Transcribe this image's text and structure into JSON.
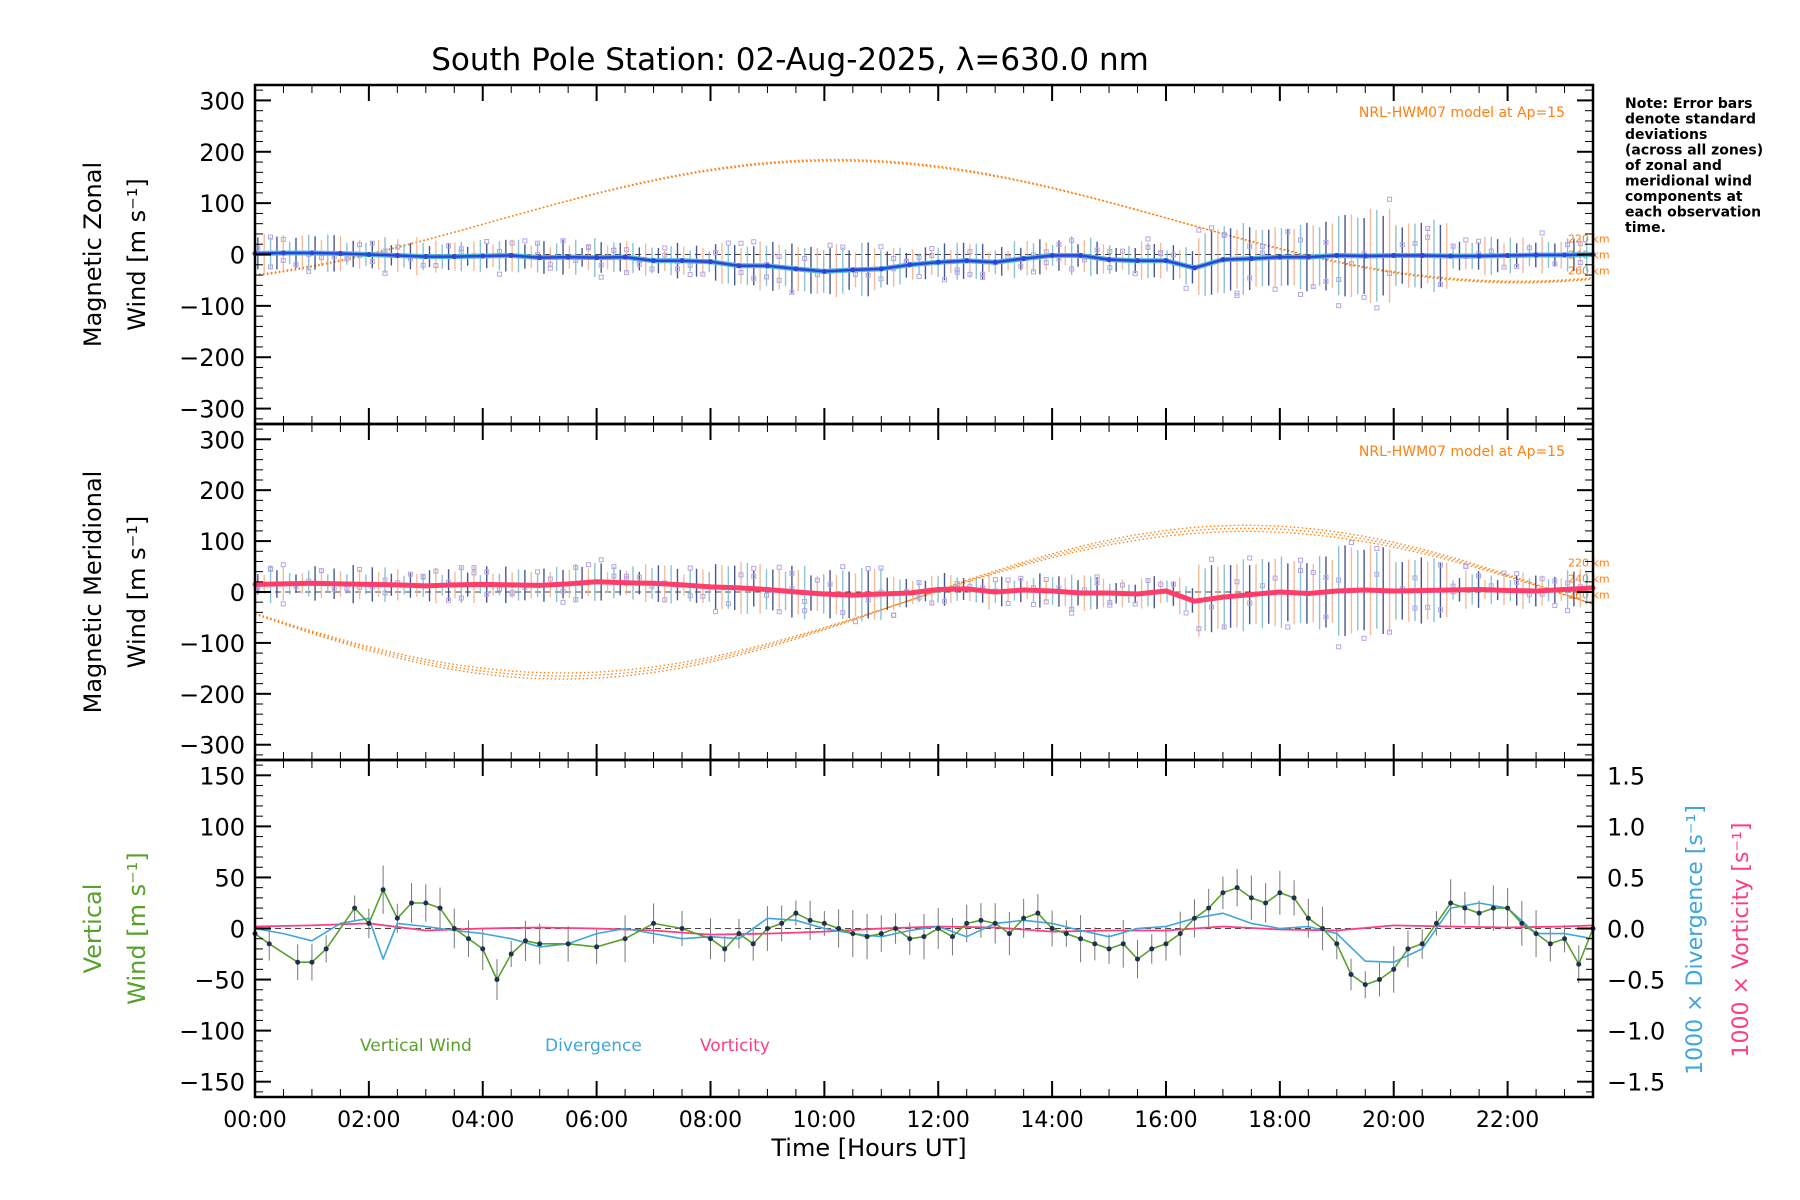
{
  "title": "South Pole Station: 02-Aug-2025, λ=630.0 nm",
  "note": [
    "Note: Error bars",
    "denote standard",
    "deviations",
    "(across all zones)",
    "of zonal and",
    "meridional wind",
    "components at",
    "each observation",
    "time."
  ],
  "colors": {
    "zonal_mean": "#2a45d8",
    "zonal_light": "#55b4dc",
    "meridional_mean": "#ff3d6a",
    "model": "#ff7f0e",
    "scatter": "#b3a6e6",
    "vertical": "#5aa02c",
    "divergence": "#3ea6dc",
    "vorticity": "#ff3d7f",
    "axis": "#000000"
  },
  "chart_data": [
    {
      "type": "line",
      "name": "zonal",
      "ylabel_lines": [
        "Magnetic Zonal",
        "Wind [m s⁻¹]"
      ],
      "ylim": [
        -330,
        330
      ],
      "yticks": [
        300,
        200,
        100,
        0,
        -100,
        -200,
        -300
      ],
      "ytick_labels": [
        "300",
        "200",
        "100",
        "0",
        "−100",
        "−200",
        "−300"
      ],
      "xlim": [
        0,
        23.5
      ],
      "model_label": "NRL-HWM07 model at Ap=15",
      "altitude_labels": [
        "220 km",
        "240 km",
        "260 km"
      ],
      "mean_series": {
        "name": "Zonal wind",
        "x": [
          0,
          0.5,
          1,
          1.5,
          2,
          2.5,
          3,
          3.5,
          4,
          4.5,
          5,
          5.5,
          6,
          6.5,
          7,
          7.5,
          8,
          8.5,
          9,
          9.5,
          10,
          10.5,
          11,
          11.5,
          12,
          12.5,
          13,
          13.5,
          14,
          14.5,
          15,
          15.5,
          16,
          16.5,
          17,
          17.5,
          18,
          18.5,
          19,
          19.5,
          20,
          20.5,
          21,
          21.5,
          22,
          22.5,
          23,
          23.5
        ],
        "y": [
          2,
          3,
          3,
          2,
          0,
          -2,
          -4,
          -4,
          -3,
          -2,
          -6,
          -5,
          -6,
          -5,
          -12,
          -12,
          -14,
          -22,
          -22,
          -28,
          -33,
          -30,
          -28,
          -20,
          -15,
          -12,
          -15,
          -8,
          -2,
          -2,
          -10,
          -12,
          -12,
          -26,
          -10,
          -8,
          -5,
          -5,
          -2,
          -3,
          -2,
          -2,
          -3,
          -3,
          -2,
          -1,
          -1,
          0
        ]
      },
      "model_peak": 185,
      "model_min": -55
    },
    {
      "type": "line",
      "name": "meridional",
      "ylabel_lines": [
        "Magnetic Meridional",
        "Wind [m s⁻¹]"
      ],
      "ylim": [
        -330,
        330
      ],
      "yticks": [
        300,
        200,
        100,
        0,
        -100,
        -200,
        -300
      ],
      "ytick_labels": [
        "300",
        "200",
        "100",
        "0",
        "−100",
        "−200",
        "−300"
      ],
      "xlim": [
        0,
        23.5
      ],
      "model_label": "NRL-HWM07 model at Ap=15",
      "altitude_labels": [
        "220 km",
        "240 km",
        "260 km"
      ],
      "mean_series": {
        "name": "Meridional wind",
        "x": [
          0,
          0.5,
          1,
          1.5,
          2,
          2.5,
          3,
          3.5,
          4,
          4.5,
          5,
          5.5,
          6,
          6.5,
          7,
          7.5,
          8,
          8.5,
          9,
          9.5,
          10,
          10.5,
          11,
          11.5,
          12,
          12.5,
          13,
          13.5,
          14,
          14.5,
          15,
          15.5,
          16,
          16.5,
          17,
          17.5,
          18,
          18.5,
          19,
          19.5,
          20,
          20.5,
          21,
          21.5,
          22,
          22.5,
          23,
          23.5
        ],
        "y": [
          15,
          16,
          17,
          16,
          15,
          14,
          12,
          14,
          15,
          14,
          13,
          16,
          20,
          18,
          17,
          14,
          10,
          8,
          5,
          0,
          -4,
          -6,
          -4,
          -2,
          5,
          6,
          0,
          4,
          2,
          -2,
          -2,
          -4,
          2,
          -18,
          -10,
          -5,
          0,
          -3,
          2,
          4,
          2,
          3,
          4,
          5,
          3,
          2,
          5,
          8
        ]
      },
      "model_peak": 125,
      "model_min": -165
    },
    {
      "type": "line",
      "name": "vertical",
      "ylabel_lines": [
        "Vertical",
        "Wind [m s⁻¹]"
      ],
      "ylim": [
        -165,
        165
      ],
      "yticks": [
        150,
        100,
        50,
        0,
        -50,
        -100,
        -150
      ],
      "ytick_labels": [
        "150",
        "100",
        "50",
        "0",
        "−50",
        "−100",
        "−150"
      ],
      "y2lim": [
        -1.65,
        1.65
      ],
      "y2ticks": [
        1.5,
        1.0,
        0.5,
        0.0,
        -0.5,
        -1.0,
        -1.5
      ],
      "y2tick_labels": [
        "1.5",
        "1.0",
        "0.5",
        "0.0",
        "−0.5",
        "−1.0",
        "−1.5"
      ],
      "y2labels": [
        "1000 × Divergence [s⁻¹]",
        "1000 × Vorticity [s⁻¹]"
      ],
      "xlim": [
        0,
        23.5
      ],
      "xticks": [
        0,
        2,
        4,
        6,
        8,
        10,
        12,
        14,
        16,
        18,
        20,
        22
      ],
      "xtick_labels": [
        "00:00",
        "02:00",
        "04:00",
        "06:00",
        "08:00",
        "10:00",
        "12:00",
        "14:00",
        "16:00",
        "18:00",
        "20:00",
        "22:00"
      ],
      "xlabel": "Time [Hours UT]",
      "legend": [
        "Vertical Wind",
        "Divergence",
        "Vorticity"
      ],
      "series": [
        {
          "name": "Vertical Wind",
          "x": [
            0,
            0.25,
            0.75,
            1.0,
            1.25,
            1.75,
            2.0,
            2.25,
            2.5,
            2.75,
            3.0,
            3.25,
            3.5,
            3.75,
            4.0,
            4.25,
            4.5,
            4.75,
            5.0,
            5.5,
            6.0,
            6.5,
            7.0,
            7.5,
            8.0,
            8.25,
            8.5,
            8.75,
            9.0,
            9.25,
            9.5,
            9.75,
            10.0,
            10.25,
            10.5,
            10.75,
            11.0,
            11.25,
            11.5,
            11.75,
            12.0,
            12.25,
            12.5,
            12.75,
            13.0,
            13.25,
            13.5,
            13.75,
            14.0,
            14.25,
            14.5,
            14.75,
            15.0,
            15.25,
            15.5,
            15.75,
            16.0,
            16.25,
            16.5,
            16.75,
            17.0,
            17.25,
            17.5,
            17.75,
            18.0,
            18.25,
            18.5,
            18.75,
            19.0,
            19.25,
            19.5,
            19.75,
            20.0,
            20.25,
            20.5,
            20.75,
            21.0,
            21.25,
            21.5,
            21.75,
            22.0,
            22.25,
            22.5,
            22.75,
            23.0,
            23.25,
            23.5
          ],
          "y": [
            -5,
            -15,
            -33,
            -33,
            -20,
            20,
            5,
            38,
            10,
            25,
            25,
            20,
            0,
            -10,
            -20,
            -50,
            -25,
            -12,
            -15,
            -15,
            -18,
            -10,
            5,
            0,
            -10,
            -20,
            -5,
            -15,
            0,
            5,
            15,
            8,
            5,
            0,
            -5,
            -8,
            -5,
            0,
            -10,
            -8,
            0,
            -8,
            5,
            8,
            5,
            -5,
            10,
            15,
            0,
            -5,
            -10,
            -15,
            -20,
            -15,
            -30,
            -20,
            -15,
            -5,
            10,
            20,
            35,
            40,
            30,
            25,
            35,
            30,
            10,
            0,
            -15,
            -45,
            -55,
            -50,
            -40,
            -20,
            -15,
            5,
            25,
            20,
            15,
            20,
            20,
            5,
            -5,
            -15,
            -10,
            -35,
            0
          ]
        },
        {
          "name": "Divergence",
          "x": [
            0,
            0.5,
            1.0,
            1.5,
            2.0,
            2.25,
            2.5,
            3.0,
            3.5,
            4.0,
            4.5,
            5.0,
            5.5,
            6.0,
            6.5,
            7.0,
            7.5,
            8.0,
            8.5,
            9.0,
            9.5,
            10.0,
            10.5,
            11.0,
            11.5,
            12.0,
            12.5,
            13.0,
            13.5,
            14.0,
            14.5,
            15.0,
            15.5,
            16.0,
            16.5,
            17.0,
            17.5,
            18.0,
            18.5,
            19.0,
            19.5,
            20.0,
            20.5,
            21.0,
            21.5,
            22.0,
            22.5,
            23.0,
            23.5
          ],
          "y": [
            0.0,
            -0.05,
            -0.12,
            0.05,
            0.1,
            -0.3,
            0.05,
            0.02,
            -0.02,
            -0.05,
            -0.1,
            -0.18,
            -0.15,
            -0.05,
            0.0,
            -0.05,
            -0.1,
            -0.08,
            -0.1,
            0.1,
            0.08,
            0.0,
            -0.05,
            -0.08,
            -0.02,
            0.02,
            -0.08,
            0.05,
            0.08,
            0.05,
            -0.02,
            -0.08,
            0.0,
            0.02,
            0.1,
            0.15,
            0.05,
            0.0,
            0.02,
            -0.05,
            -0.32,
            -0.33,
            -0.2,
            0.2,
            0.25,
            0.2,
            -0.05,
            -0.05,
            -0.1
          ]
        },
        {
          "name": "Vorticity",
          "x": [
            0,
            1,
            2,
            3,
            4,
            5,
            6,
            7,
            8,
            9,
            10,
            11,
            12,
            13,
            14,
            15,
            16,
            17,
            18,
            19,
            20,
            21,
            22,
            23,
            23.5
          ],
          "y": [
            0.02,
            0.03,
            0.05,
            -0.02,
            0.0,
            0.01,
            0.0,
            -0.02,
            -0.06,
            -0.05,
            -0.03,
            0.0,
            0.02,
            0.01,
            -0.03,
            -0.02,
            -0.02,
            0.02,
            -0.01,
            -0.02,
            0.03,
            0.02,
            0.01,
            0.02,
            0.03
          ]
        }
      ]
    }
  ]
}
